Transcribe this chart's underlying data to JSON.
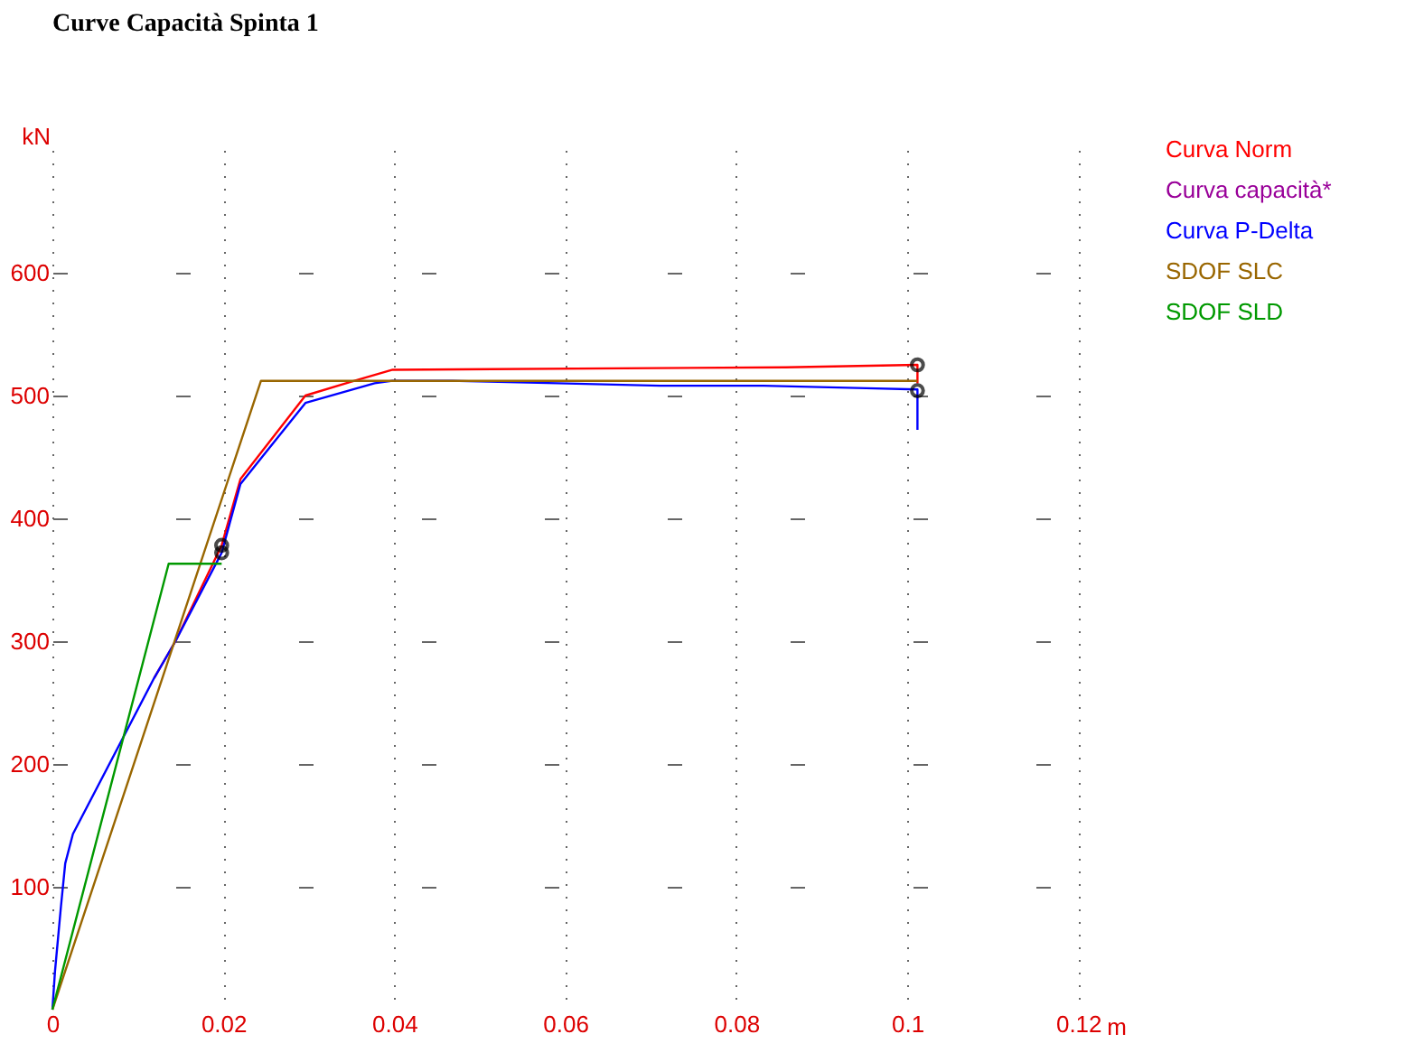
{
  "chart_data": {
    "type": "line",
    "title": "Curve Capacità Spinta 1",
    "ylabel": "kN",
    "xlabel": "m",
    "xlim": [
      0,
      0.126
    ],
    "ylim": [
      0,
      700
    ],
    "xticks": [
      0,
      0.02,
      0.04,
      0.06,
      0.08,
      0.1,
      0.12
    ],
    "yticks": [
      100,
      200,
      300,
      400,
      500,
      600
    ],
    "grid": true,
    "legend": "top right",
    "marker": "none",
    "line_style": "solid",
    "series": [
      {
        "name": "Curva Norm",
        "color": "#ff0000",
        "x": [
          0.0119,
          0.0144,
          0.0198,
          0.022,
          0.0296,
          0.0348,
          0.0398,
          0.0858,
          0.1012,
          0.1012
        ],
        "values": [
          270,
          300,
          378,
          432,
          500,
          511,
          521,
          523,
          525,
          510
        ]
      },
      {
        "name": "Curva capacità*",
        "color": "#990099"
      },
      {
        "name": "Curva P-Delta",
        "color": "#0000ff",
        "x": [
          0,
          0.0003,
          0.001,
          0.0015,
          0.0024,
          0.0119,
          0.0144,
          0.0198,
          0.022,
          0.0296,
          0.0377,
          0.0398,
          0.0468,
          0.0591,
          0.0711,
          0.0832,
          0.0952,
          0.1012,
          0.1012
        ],
        "values": [
          0,
          31,
          84,
          119,
          143,
          270,
          300,
          372,
          428,
          494,
          510,
          512,
          512,
          510,
          508,
          508,
          506,
          505,
          472
        ]
      },
      {
        "name": "SDOF SLC",
        "color": "#996600",
        "x": [
          0,
          0.0244,
          0.1012
        ],
        "values": [
          0,
          512,
          512
        ]
      },
      {
        "name": "SDOF SLD",
        "color": "#009900",
        "x": [
          0,
          0.0136,
          0.0198
        ],
        "values": [
          0,
          363,
          363
        ]
      },
      {
        "type": "scatter",
        "marker": "circle",
        "color": "#000000",
        "x": [
          0.0198,
          0.0198,
          0.1012,
          0.1012
        ],
        "values": [
          378,
          372,
          525,
          504
        ]
      }
    ]
  }
}
